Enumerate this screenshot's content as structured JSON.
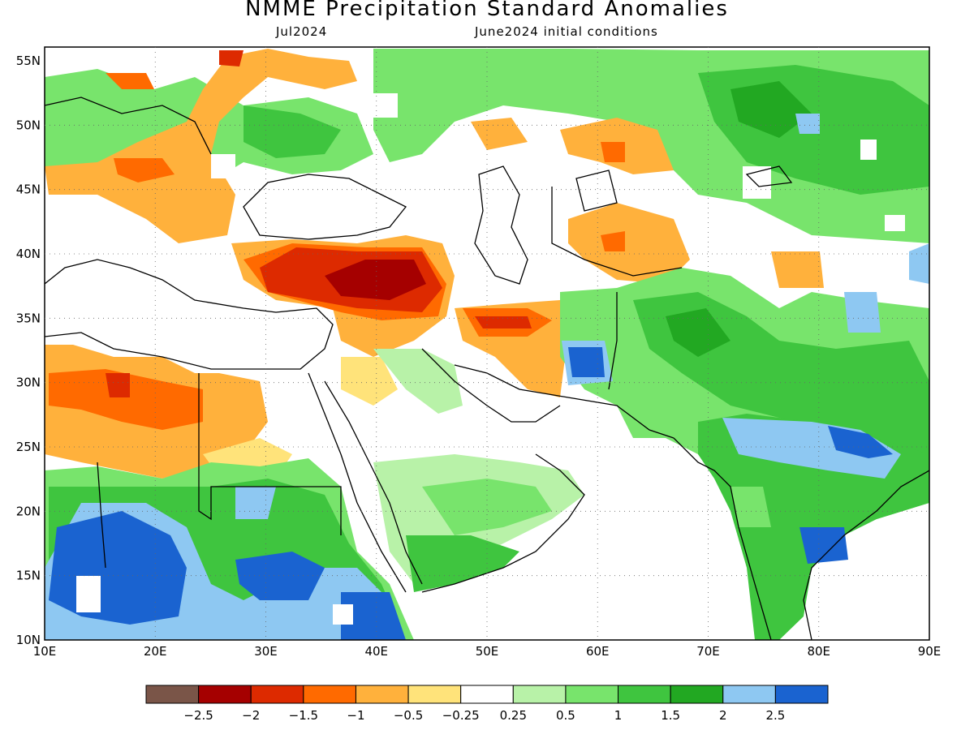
{
  "title": "NMME Precipitation Standard Anomalies",
  "subtitle_left": "Jul2024",
  "subtitle_right": "June2024 initial conditions",
  "axes": {
    "lon_labels": [
      "10E",
      "20E",
      "30E",
      "40E",
      "50E",
      "60E",
      "70E",
      "80E",
      "90E"
    ],
    "lat_labels": [
      "55N",
      "50N",
      "45N",
      "40N",
      "35N",
      "30N",
      "25N",
      "20N",
      "15N",
      "10N"
    ]
  },
  "colorbar": {
    "colors": [
      "#7a5548",
      "#a50000",
      "#dd2a00",
      "#ff6a00",
      "#ffb13c",
      "#ffe37a",
      "#ffffff",
      "#b8f2a8",
      "#78e46c",
      "#3fc53f",
      "#22a822",
      "#8ec8f2",
      "#1a63d0"
    ],
    "labels": [
      "-2.5",
      "-2",
      "-1.5",
      "-1",
      "-0.5",
      "-0.25",
      "0.25",
      "0.5",
      "1",
      "1.5",
      "2",
      "2.5"
    ]
  },
  "palette": {
    "red_dark": "#a50000",
    "red": "#dd2a00",
    "orange": "#ff6a00",
    "orange_light": "#ffb13c",
    "yellow": "#ffe37a",
    "green_light": "#b8f2a8",
    "green": "#78e46c",
    "green_mid": "#3fc53f",
    "green_dark": "#22a822",
    "blue_light": "#8ec8f2",
    "blue": "#1a63d0"
  }
}
